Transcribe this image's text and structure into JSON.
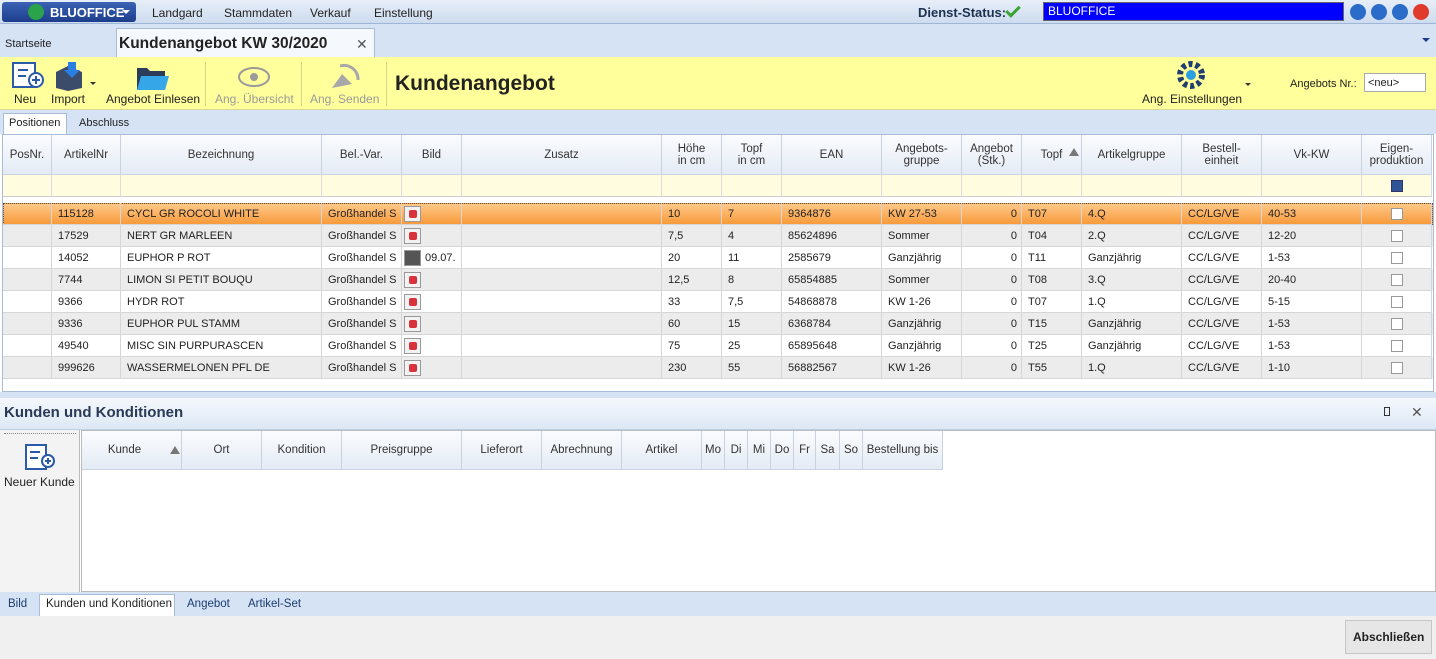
{
  "menu": {
    "logo": "BLUOFFICE",
    "items": [
      "Landgard",
      "Stammdaten",
      "Verkauf",
      "Einstellung"
    ],
    "status_label": "Dienst-Status:",
    "status_field": "BLUOFFICE"
  },
  "tabs": [
    "Startseite",
    "Kundenangebot KW 30/2020"
  ],
  "toolbar": {
    "buttons": [
      "Neu",
      "Import",
      "Angebot Einlesen",
      "Ang. Übersicht",
      "Ang. Senden"
    ],
    "title": "Kundenangebot",
    "settings": "Ang. Einstellungen",
    "nr_label": "Angebots Nr.:",
    "nr_value": "<neu>"
  },
  "subtabs": [
    "Positionen",
    "Abschluss"
  ],
  "table": {
    "columns": [
      "PosNr.",
      "ArtikelNr",
      "Bezeichnung",
      "Bel.-Var.",
      "Bild",
      "Zusatz",
      "Höhe\nin cm",
      "Topf\nin cm",
      "EAN",
      "Angebots-\ngruppe",
      "Angebot\n(Stk.)",
      "Topf",
      "Artikelgruppe",
      "Bestell-\neinheit",
      "Vk-KW",
      "Eigen-\nproduktion"
    ],
    "rows": [
      [
        null,
        "115128",
        "CYCL GR ROCOLI WHITE",
        "Großhandel S",
        null,
        null,
        "10",
        "7",
        "9364876",
        "KW 27-53",
        "0",
        "T07",
        "4.Q",
        "CC/LG/VE",
        "40-53"
      ],
      [
        null,
        "17529",
        "NERT GR MARLEEN",
        "Großhandel S",
        null,
        null,
        "7,5",
        "4",
        "85624896",
        "Sommer",
        "0",
        "T04",
        "2.Q",
        "CC/LG/VE",
        "12-20"
      ],
      [
        null,
        "14052",
        "EUPHOR P ROT",
        "Großhandel S",
        "09.07.",
        null,
        "20",
        "11",
        "2585679",
        "Ganzjährig",
        "0",
        "T11",
        "Ganzjährig",
        "CC/LG/VE",
        "1-53"
      ],
      [
        null,
        "7744",
        "LIMON SI PETIT BOUQU",
        "Großhandel S",
        null,
        null,
        "12,5",
        "8",
        "65854885",
        "Sommer",
        "0",
        "T08",
        "3.Q",
        "CC/LG/VE",
        "20-40"
      ],
      [
        null,
        "9366",
        "HYDR ROT",
        "Großhandel S",
        null,
        null,
        "33",
        "7,5",
        "54868878",
        "KW 1-26",
        "0",
        "T07",
        "1.Q",
        "CC/LG/VE",
        "5-15"
      ],
      [
        null,
        "9336",
        "EUPHOR PUL STAMM",
        "Großhandel S",
        null,
        null,
        "60",
        "15",
        "6368784",
        "Ganzjährig",
        "0",
        "T15",
        "Ganzjährig",
        "CC/LG/VE",
        "1-53"
      ],
      [
        null,
        "49540",
        "MISC SIN PURPURASCEN",
        "Großhandel S",
        null,
        null,
        "75",
        "25",
        "65895648",
        "Ganzjährig",
        "0",
        "T25",
        "Ganzjährig",
        "CC/LG/VE",
        "1-53"
      ],
      [
        null,
        "999626",
        "WASSERMELONEN PFL DE",
        "Großhandel S",
        null,
        null,
        "230",
        "55",
        "56882567",
        "KW 1-26",
        "0",
        "T55",
        "1.Q",
        "CC/LG/VE",
        "1-10"
      ]
    ]
  },
  "panel": {
    "title": "Kunden und Konditionen",
    "new_button": "Neuer Kunde",
    "columns": [
      "Kunde",
      "Ort",
      "Kondition",
      "Preisgruppe",
      "Lieferort",
      "Abrechnung",
      "Artikel",
      "Mo",
      "Di",
      "Mi",
      "Do",
      "Fr",
      "Sa",
      "So",
      "Bestellung bis"
    ]
  },
  "bottom_tabs": [
    "Bild",
    "Kunden und Konditionen",
    "Angebot",
    "Artikel-Set"
  ],
  "finish_button": "Abschließen"
}
